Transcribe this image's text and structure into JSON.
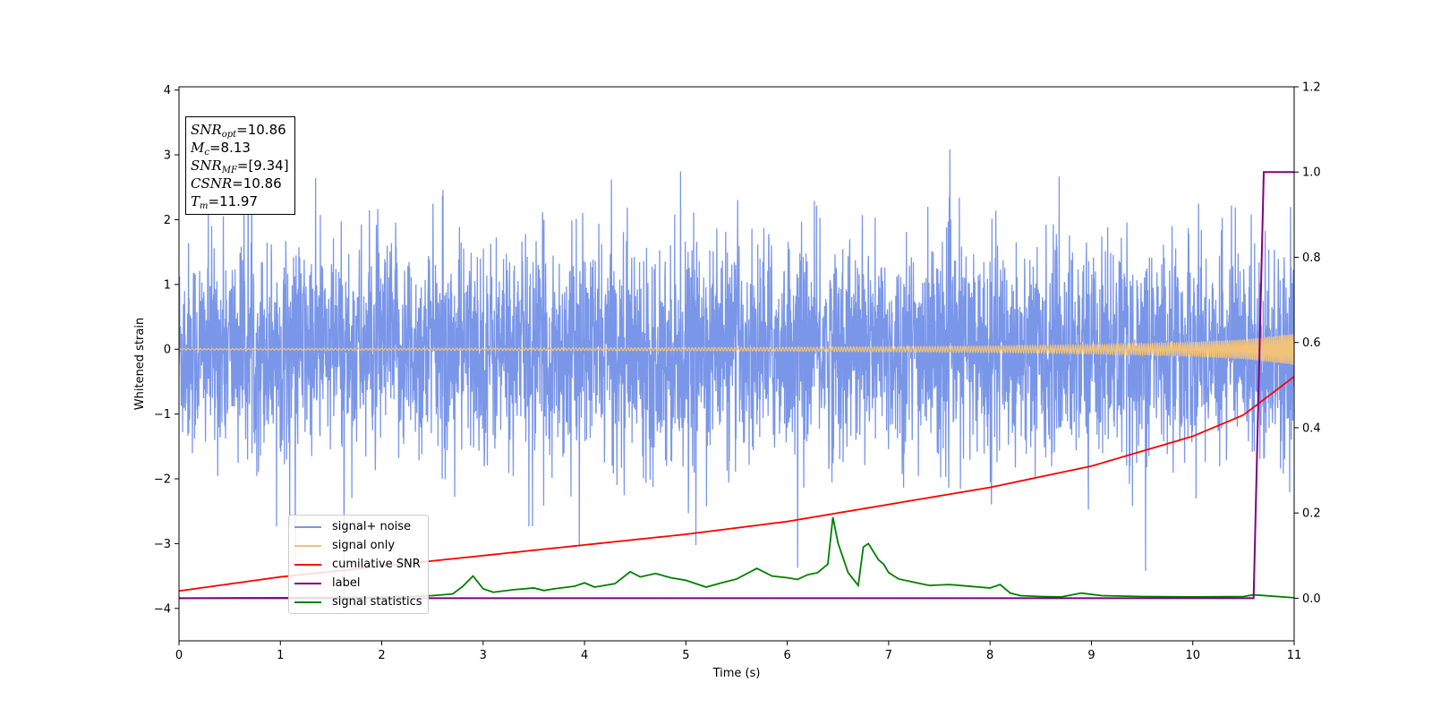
{
  "chart_data": {
    "type": "line",
    "xlabel": "Time (s)",
    "ylabel": "Whitened strain",
    "xlim": [
      0,
      11
    ],
    "ylim_left": [
      -4.5,
      4.05
    ],
    "ylim_right": [
      -0.1,
      1.2
    ],
    "x_ticks": [
      0,
      1,
      2,
      3,
      4,
      5,
      6,
      7,
      8,
      9,
      10,
      11
    ],
    "y_ticks_left": [
      -4,
      -3,
      -2,
      -1,
      0,
      1,
      2,
      3,
      4
    ],
    "y_tick_labels_left": [
      "−4",
      "−3",
      "−2",
      "−1",
      "0",
      "1",
      "2",
      "3",
      "4"
    ],
    "y_ticks_right": [
      0.0,
      0.2,
      0.4,
      0.6,
      0.8,
      1.0,
      1.2
    ],
    "y_tick_labels_right": [
      "0.0",
      "0.2",
      "0.4",
      "0.6",
      "0.8",
      "1.0",
      "1.2"
    ],
    "grid": false,
    "legend_position": "lower-left",
    "series": [
      {
        "name": "signal+ noise",
        "axis": "left",
        "color": "#7a96e8",
        "description_of_shape": "dense noise, typical amplitude about 1.3, peaks about 3.5",
        "typical_amplitude": 1.3,
        "peak_amplitude": 3.5
      },
      {
        "name": "signal only",
        "axis": "left",
        "color": "#f0c27a",
        "envelope": {
          "x": [
            0,
            2,
            4,
            6,
            8,
            9,
            10,
            10.5,
            11
          ],
          "amplitude": [
            0.01,
            0.015,
            0.02,
            0.03,
            0.05,
            0.07,
            0.11,
            0.15,
            0.24
          ]
        }
      },
      {
        "name": "cumilative SNR",
        "axis": "right",
        "color": "#ff0000",
        "x": [
          0,
          1,
          2,
          3,
          4,
          5,
          6,
          7,
          8,
          9,
          10,
          10.5,
          11
        ],
        "y": [
          0.017,
          0.05,
          0.075,
          0.1,
          0.125,
          0.15,
          0.18,
          0.22,
          0.26,
          0.31,
          0.38,
          0.43,
          0.52
        ]
      },
      {
        "name": "label",
        "axis": "right",
        "color": "#800080",
        "x": [
          0,
          10.6,
          10.7,
          11
        ],
        "y": [
          0,
          0,
          1,
          1
        ]
      },
      {
        "name": "signal statistics",
        "axis": "right",
        "color": "#008000",
        "x": [
          0,
          2.0,
          2.5,
          2.7,
          2.8,
          2.9,
          3.0,
          3.1,
          3.3,
          3.5,
          3.6,
          3.7,
          3.9,
          4.0,
          4.1,
          4.3,
          4.45,
          4.55,
          4.7,
          4.85,
          5.0,
          5.2,
          5.35,
          5.5,
          5.7,
          5.85,
          6.0,
          6.1,
          6.2,
          6.3,
          6.4,
          6.45,
          6.5,
          6.6,
          6.7,
          6.75,
          6.8,
          6.9,
          6.95,
          7.0,
          7.1,
          7.3,
          7.4,
          7.6,
          7.8,
          8.0,
          8.1,
          8.2,
          8.3,
          8.5,
          8.7,
          8.9,
          9.1,
          9.3,
          9.5,
          10.0,
          10.5,
          10.6,
          11.0
        ],
        "y": [
          0,
          0.002,
          0.006,
          0.01,
          0.028,
          0.052,
          0.022,
          0.014,
          0.02,
          0.024,
          0.018,
          0.022,
          0.028,
          0.036,
          0.026,
          0.034,
          0.062,
          0.05,
          0.058,
          0.048,
          0.042,
          0.026,
          0.036,
          0.045,
          0.07,
          0.052,
          0.048,
          0.044,
          0.055,
          0.06,
          0.08,
          0.19,
          0.13,
          0.06,
          0.03,
          0.12,
          0.128,
          0.09,
          0.08,
          0.06,
          0.045,
          0.035,
          0.03,
          0.032,
          0.028,
          0.024,
          0.032,
          0.012,
          0.006,
          0.004,
          0.003,
          0.012,
          0.006,
          0.005,
          0.004,
          0.003,
          0.004,
          0.008,
          0.001
        ]
      }
    ]
  },
  "info_box": {
    "snr_opt_sym": "SNR",
    "snr_opt_sub": "opt",
    "snr_opt_val": "=10.86",
    "mc_sym": "M",
    "mc_sub": "c",
    "mc_val": "=8.13",
    "snr_mf_sym": "SNR",
    "snr_mf_sub": "MF",
    "snr_mf_val": "=[9.34]",
    "csnr_sym": "CSNR",
    "csnr_val": "=10.86",
    "tm_sym": "T",
    "tm_sub": "m",
    "tm_val": "=11.97"
  },
  "legend": {
    "items": [
      {
        "label": "signal+ noise",
        "color": "#7a96e8"
      },
      {
        "label": "signal only",
        "color": "#f0c27a"
      },
      {
        "label": "cumilative SNR",
        "color": "#ff0000"
      },
      {
        "label": "label",
        "color": "#800080"
      },
      {
        "label": "signal statistics",
        "color": "#008000"
      }
    ]
  }
}
